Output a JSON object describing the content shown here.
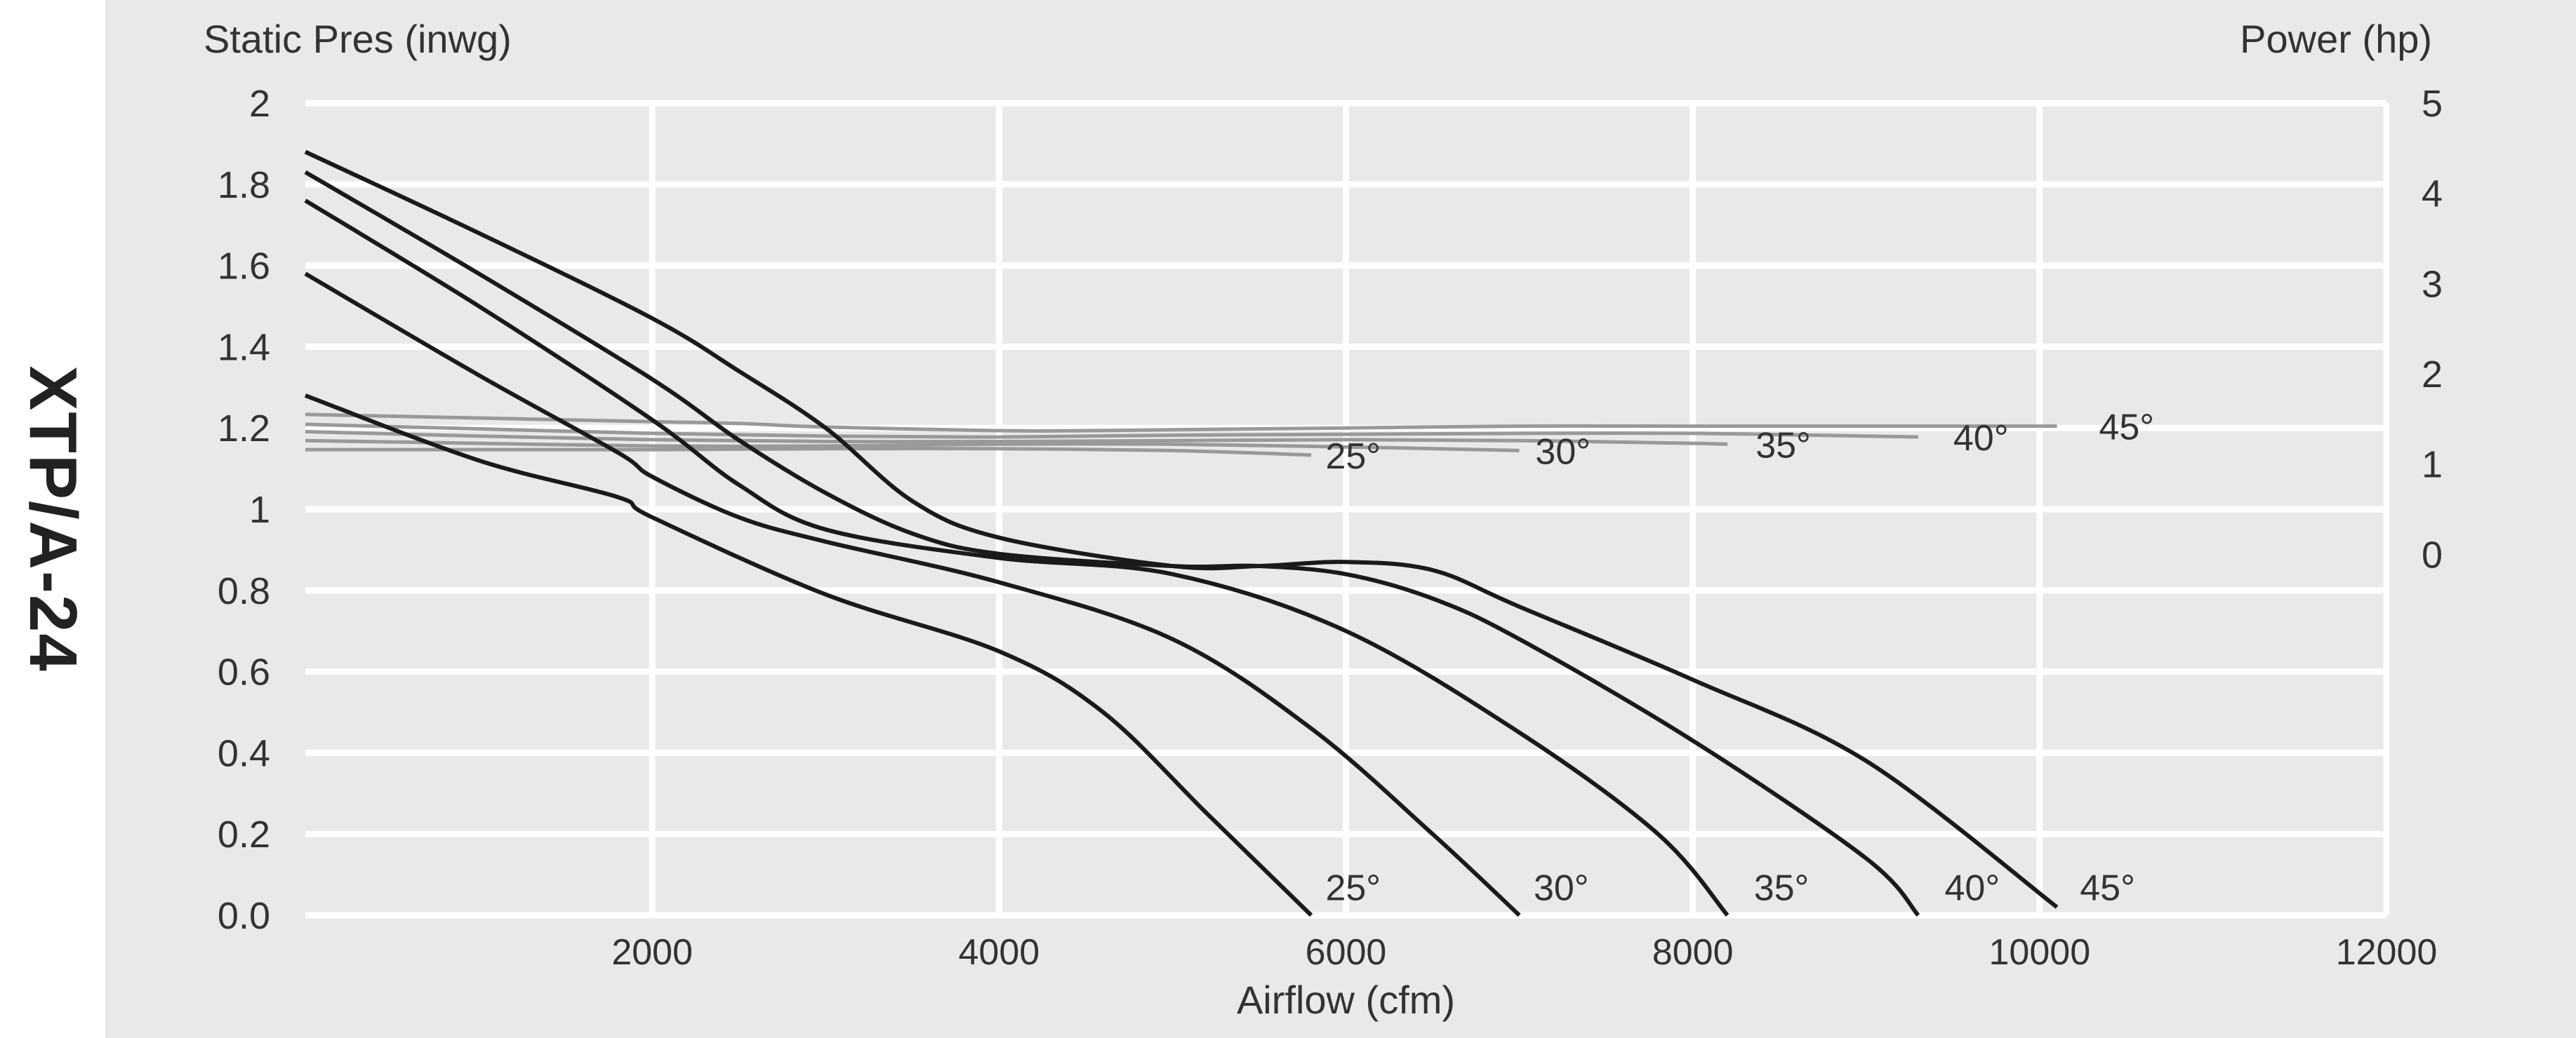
{
  "side_title": "XTP/A-24",
  "chart_data": {
    "type": "line",
    "title": "",
    "xlabel": "Airflow (cfm)",
    "ylabel_left": "Static Pres (inwg)",
    "ylabel_right": "Power (hp)",
    "xlim": [
      0,
      12000
    ],
    "ylim": [
      0,
      2
    ],
    "y2lim": [
      -4,
      5
    ],
    "grid": true,
    "legend": "none",
    "x_ticks": [
      "2000",
      "4000",
      "6000",
      "8000",
      "10000",
      "12000"
    ],
    "x_tick_values": [
      2000,
      4000,
      6000,
      8000,
      10000,
      12000
    ],
    "y_ticks": [
      "0.0",
      "0.2",
      "0.4",
      "0.6",
      "0.8",
      "1",
      "1.2",
      "1.4",
      "1.6",
      "1.8",
      "2"
    ],
    "y_tick_values": [
      0,
      0.2,
      0.4,
      0.6,
      0.8,
      1.0,
      1.2,
      1.4,
      1.6,
      1.8,
      2.0
    ],
    "y2_ticks": [
      "0",
      "1",
      "2",
      "3",
      "4",
      "5"
    ],
    "y2_tick_values": [
      0,
      1,
      2,
      3,
      4,
      5
    ],
    "colors": {
      "pressure": "#1a1a1a",
      "power": "#999999",
      "grid": "#ffffff",
      "plot_bg": "#e9e9e9"
    },
    "pressure_series": [
      {
        "name": "25°",
        "label_at": [
          5850,
          0.02
        ],
        "x": [
          0,
          1000,
          1800,
          2000,
          3000,
          4000,
          4600,
          5200,
          5800
        ],
        "y": [
          1.28,
          1.12,
          1.03,
          0.98,
          0.79,
          0.65,
          0.5,
          0.25,
          0.0
        ]
      },
      {
        "name": "30°",
        "label_at": [
          7050,
          0.02
        ],
        "x": [
          0,
          1000,
          1800,
          2000,
          2500,
          3000,
          4000,
          5000,
          5800,
          6500,
          7000
        ],
        "y": [
          1.58,
          1.33,
          1.14,
          1.08,
          0.98,
          0.92,
          0.82,
          0.68,
          0.46,
          0.2,
          0.0
        ]
      },
      {
        "name": "35°",
        "label_at": [
          8320,
          0.02
        ],
        "x": [
          0,
          1000,
          2000,
          2500,
          3000,
          4000,
          5000,
          6000,
          7000,
          7800,
          8200
        ],
        "y": [
          1.76,
          1.5,
          1.22,
          1.06,
          0.95,
          0.88,
          0.84,
          0.7,
          0.45,
          0.2,
          0.0
        ]
      },
      {
        "name": "40°",
        "label_at": [
          9420,
          0.02
        ],
        "x": [
          0,
          1000,
          2000,
          2500,
          3000,
          3500,
          4000,
          5000,
          5500,
          6000,
          6500,
          7000,
          8000,
          9000,
          9300
        ],
        "y": [
          1.83,
          1.58,
          1.32,
          1.17,
          1.04,
          0.94,
          0.89,
          0.86,
          0.86,
          0.84,
          0.78,
          0.68,
          0.43,
          0.14,
          0.0
        ]
      },
      {
        "name": "45°",
        "label_at": [
          10200,
          0.02
        ],
        "x": [
          0,
          1000,
          2000,
          2500,
          3000,
          3500,
          4000,
          5000,
          5500,
          6000,
          6500,
          7000,
          8000,
          9000,
          10100
        ],
        "y": [
          1.88,
          1.68,
          1.47,
          1.34,
          1.2,
          1.02,
          0.93,
          0.86,
          0.86,
          0.87,
          0.85,
          0.76,
          0.58,
          0.38,
          0.02
        ]
      }
    ],
    "power_series": [
      {
        "name": "25°",
        "label_at": [
          5850,
          1.1
        ],
        "x": [
          0,
          1000,
          2000,
          3000,
          4000,
          5000,
          5800
        ],
        "y": [
          1.16,
          1.16,
          1.16,
          1.17,
          1.17,
          1.15,
          1.1
        ]
      },
      {
        "name": "30°",
        "label_at": [
          7060,
          1.15
        ],
        "x": [
          0,
          1000,
          2000,
          3000,
          4000,
          5000,
          6000,
          7000
        ],
        "y": [
          1.26,
          1.23,
          1.2,
          1.2,
          1.22,
          1.22,
          1.19,
          1.15
        ]
      },
      {
        "name": "35°",
        "label_at": [
          8330,
          1.22
        ],
        "x": [
          0,
          1000,
          2000,
          3000,
          4000,
          5000,
          6000,
          7000,
          8000,
          8200
        ],
        "y": [
          1.36,
          1.31,
          1.27,
          1.25,
          1.25,
          1.26,
          1.27,
          1.26,
          1.23,
          1.22
        ]
      },
      {
        "name": "40°",
        "label_at": [
          9470,
          1.3
        ],
        "x": [
          0,
          1000,
          2000,
          3000,
          4000,
          5000,
          6000,
          7000,
          8000,
          9000,
          9300
        ],
        "y": [
          1.44,
          1.39,
          1.34,
          1.31,
          1.3,
          1.32,
          1.33,
          1.34,
          1.34,
          1.31,
          1.3
        ]
      },
      {
        "name": "45°",
        "label_at": [
          10310,
          1.42
        ],
        "x": [
          0,
          1000,
          2000,
          2500,
          3000,
          4000,
          4500,
          5000,
          6000,
          7000,
          8000,
          9000,
          10100
        ],
        "y": [
          1.55,
          1.51,
          1.47,
          1.45,
          1.41,
          1.37,
          1.37,
          1.38,
          1.4,
          1.42,
          1.42,
          1.42,
          1.42
        ]
      }
    ]
  }
}
